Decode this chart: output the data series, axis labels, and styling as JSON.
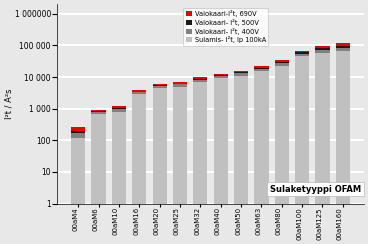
{
  "categories": [
    "00aM4",
    "00aM6",
    "00aM10",
    "00aM16",
    "00aM20",
    "00aM25",
    "00aM32",
    "00aM40",
    "00aM50",
    "00aM63",
    "00aM80",
    "00aM100",
    "00aM125",
    "00aM160"
  ],
  "sulamis": [
    120,
    700,
    800,
    2800,
    4500,
    5000,
    7000,
    9000,
    11000,
    15000,
    22000,
    45000,
    58000,
    65000
  ],
  "valo400": [
    50,
    100,
    200,
    500,
    700,
    800,
    1200,
    1500,
    2000,
    3000,
    5000,
    10000,
    15000,
    20000
  ],
  "valo500": [
    20,
    40,
    70,
    150,
    250,
    300,
    500,
    700,
    900,
    1500,
    2500,
    5000,
    7000,
    12000
  ],
  "valo690": [
    80,
    80,
    150,
    400,
    550,
    700,
    1000,
    1400,
    2000,
    2800,
    4000,
    8000,
    12000,
    25000
  ],
  "color_sulamis": "#c0c0c0",
  "color_400": "#808080",
  "color_500": "#1a1a1a",
  "color_690": "#ee0000",
  "ylabel": "I²t / A²s",
  "ylim_min": 1,
  "ylim_max": 2000000,
  "annotation": "Sulaketyyppi OFAM",
  "legend_690": "Valokaari-I²t, 690V",
  "legend_500": "Valokaari- I²t, 500V",
  "legend_400": "Valokaari- I²t, 400V",
  "legend_sulamis": "Sulamis- I²t, Ip 100kA",
  "bg_color": "#e8e8e8",
  "yticks": [
    1,
    10,
    100,
    1000,
    10000,
    100000,
    1000000
  ],
  "ytick_labels": [
    "1",
    "10",
    "100",
    "1000",
    "10000",
    "100000",
    "1 000000"
  ]
}
